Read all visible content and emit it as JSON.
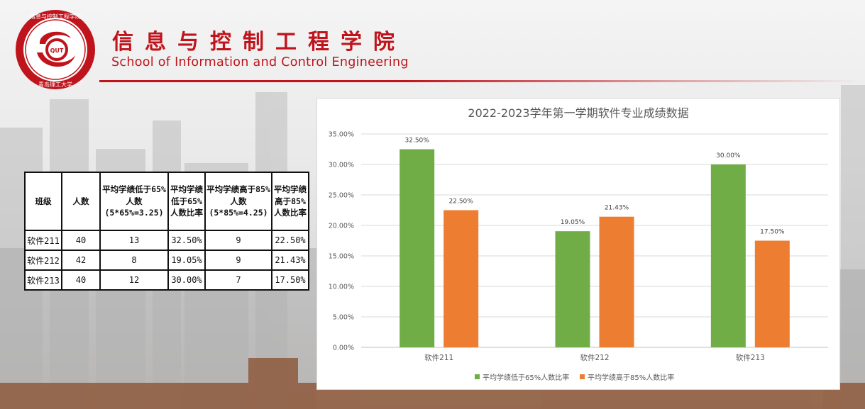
{
  "header": {
    "title_cn": "信息与控制工程学院",
    "title_en": "School of Information and Control Engineering",
    "logo_ring_text": "信息与控制工程学院",
    "logo_bottom_text": "青岛理工大学",
    "logo_center_text": "QUT"
  },
  "colors": {
    "brand_red": "#c0141c",
    "series_green": "#70ad47",
    "series_orange": "#ed7d31"
  },
  "table": {
    "headers": [
      [
        "班级"
      ],
      [
        "人数"
      ],
      [
        "平均学绩低于65%",
        "人数",
        "(5*65%=3.25)"
      ],
      [
        "平均学绩",
        "低于65%",
        "人数比率"
      ],
      [
        "平均学绩高于85%",
        "人数",
        "(5*85%=4.25)"
      ],
      [
        "平均学绩",
        "高于85%",
        "人数比率"
      ]
    ],
    "rows": [
      [
        "软件211",
        "40",
        "13",
        "32.50%",
        "9",
        "22.50%"
      ],
      [
        "软件212",
        "42",
        "8",
        "19.05%",
        "9",
        "21.43%"
      ],
      [
        "软件213",
        "40",
        "12",
        "30.00%",
        "7",
        "17.50%"
      ]
    ]
  },
  "chart_data": {
    "type": "bar",
    "title": "2022-2023学年第一学期软件专业成绩数据",
    "categories": [
      "软件211",
      "软件212",
      "软件213"
    ],
    "series": [
      {
        "name": "平均学绩低于65%人数比率",
        "values": [
          32.5,
          19.05,
          30.0
        ],
        "color": "#70ad47",
        "labels": [
          "32.50%",
          "19.05%",
          "30.00%"
        ]
      },
      {
        "name": "平均学绩高于85%人数比率",
        "values": [
          22.5,
          21.43,
          17.5
        ],
        "color": "#ed7d31",
        "labels": [
          "22.50%",
          "21.43%",
          "17.50%"
        ]
      }
    ],
    "ylim": [
      0,
      35
    ],
    "y_ticks": [
      "0.00%",
      "5.00%",
      "10.00%",
      "15.00%",
      "20.00%",
      "25.00%",
      "30.00%",
      "35.00%"
    ],
    "grid": true,
    "legend": "bottom"
  }
}
